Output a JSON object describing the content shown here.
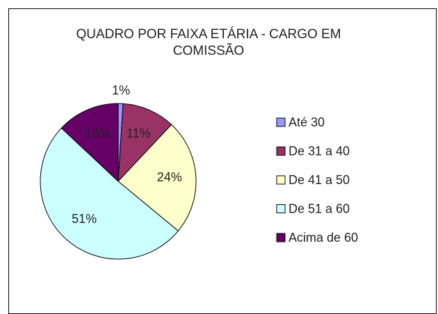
{
  "chart_data": {
    "type": "pie",
    "title": "QUADRO POR FAIXA ETÁRIA - CARGO EM COMISSÃO",
    "categories": [
      "Até 30",
      "De 31 a 40",
      "De 41 a 50",
      "De 51 a 60",
      "Acima de 60"
    ],
    "values": [
      1,
      11,
      24,
      51,
      13
    ],
    "value_labels": [
      "1%",
      "11%",
      "24%",
      "51%",
      "13%"
    ],
    "colors": [
      "#9999ff",
      "#993366",
      "#ffffcc",
      "#ccffff",
      "#660066"
    ],
    "legend": "right"
  }
}
